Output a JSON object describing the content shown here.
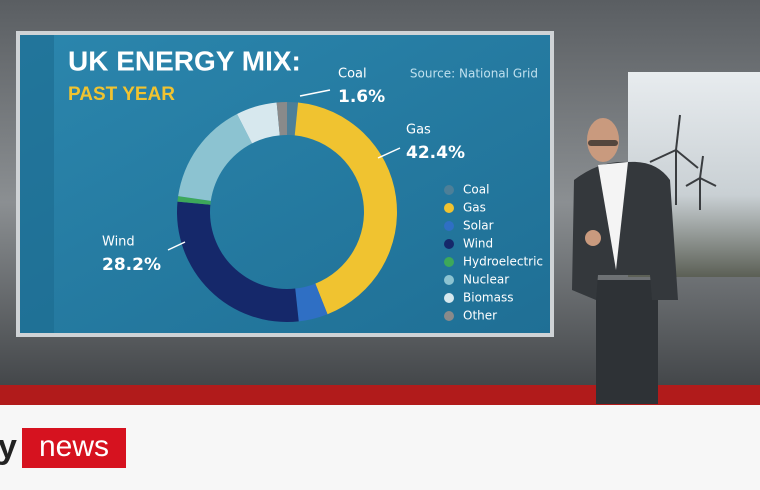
{
  "chart_data": {
    "type": "donut",
    "title": "UK ENERGY MIX:",
    "subtitle": "PAST YEAR",
    "source": "Source: National Grid",
    "categories": [
      "Coal",
      "Gas",
      "Solar",
      "Wind",
      "Hydroelectric",
      "Nuclear",
      "Biomass",
      "Other"
    ],
    "values": [
      1.6,
      42.4,
      4.3,
      28.2,
      0.8,
      15.2,
      6.0,
      1.5
    ],
    "value_labels": [
      "1.6%",
      "42.4%",
      null,
      "28.2%",
      null,
      null,
      null,
      null
    ],
    "colors": [
      "#4d7f98",
      "#f0c330",
      "#2f6fc4",
      "#15286a",
      "#3da85a",
      "#8cc3d1",
      "#d7e8ee",
      "#8a8a8a"
    ]
  },
  "logo": {
    "prefix": "y",
    "name": "news"
  }
}
